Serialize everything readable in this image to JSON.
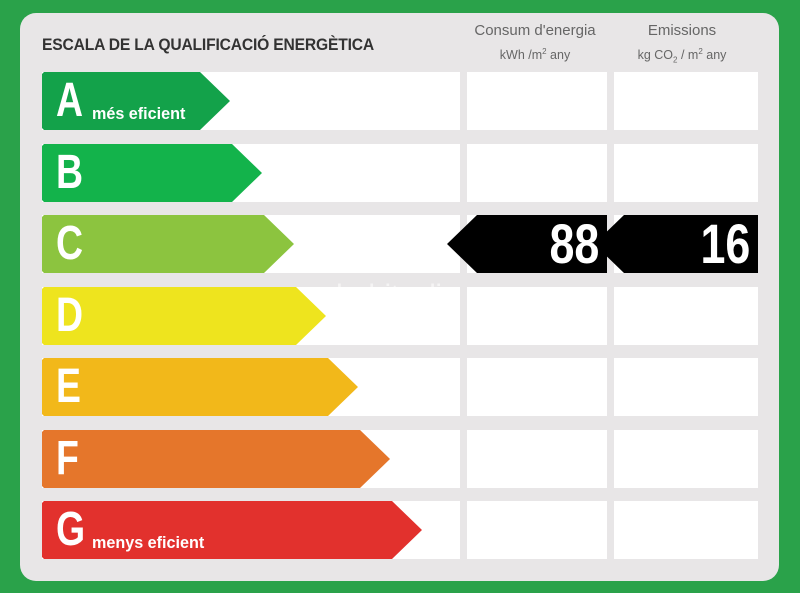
{
  "title": "ESCALA DE LA QUALIFICACIÓ ENERGÈTICA",
  "columns": {
    "consum": {
      "title": "Consum d'energia",
      "unit_main": "kWh /m",
      "unit_sup": "2",
      "unit_tail": " any"
    },
    "emissions": {
      "title": "Emissions",
      "unit_main": "kg CO",
      "unit_sub": "2",
      "unit_mid": " / m",
      "unit_sup": "2",
      "unit_tail": " any"
    }
  },
  "classes": [
    {
      "letter": "A",
      "label": "més eficient",
      "color": "#13a24a"
    },
    {
      "letter": "B",
      "label": "",
      "color": "#13b34b"
    },
    {
      "letter": "C",
      "label": "",
      "color": "#8cc43f"
    },
    {
      "letter": "D",
      "label": "",
      "color": "#eee41e"
    },
    {
      "letter": "E",
      "label": "",
      "color": "#f2b81a"
    },
    {
      "letter": "F",
      "label": "",
      "color": "#e5762b"
    },
    {
      "letter": "G",
      "label": "menys eficient",
      "color": "#e2312d"
    }
  ],
  "rating": {
    "class": "C",
    "consum_value": "88",
    "emissions_value": "16"
  },
  "watermark": "habitaclia"
}
